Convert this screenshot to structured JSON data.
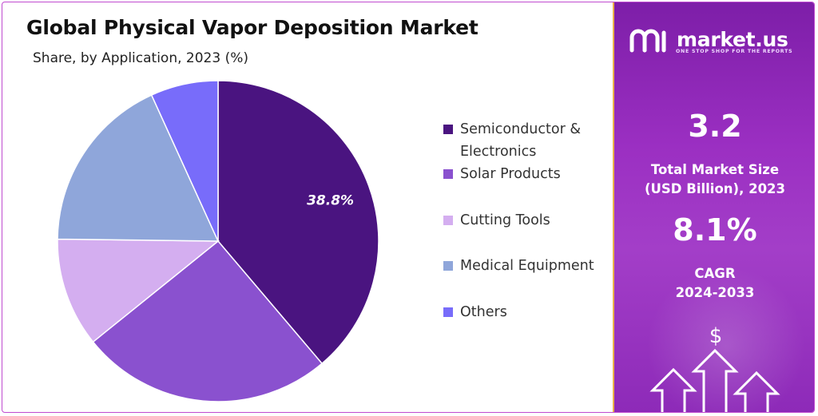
{
  "header": {
    "title": "Global Physical Vapor Deposition Market",
    "subtitle": "Share, by Application, 2023 (%)"
  },
  "chart_data": {
    "type": "pie",
    "categories": [
      "Semiconductor & Electronics",
      "Solar Products",
      "Cutting Tools",
      "Medical Equipment",
      "Others"
    ],
    "values": [
      38.8,
      25.4,
      11.0,
      18.0,
      6.8
    ],
    "data_labels": [
      "38.8%",
      "",
      "",
      "",
      ""
    ],
    "colors": [
      "#4a1480",
      "#8a51cf",
      "#d4aef0",
      "#8fa6da",
      "#786cfa"
    ],
    "legend_position": "right"
  },
  "legend": {
    "items": [
      {
        "label_lines": [
          "Semiconductor &",
          "Electronics"
        ],
        "color": "#4a1480"
      },
      {
        "label_lines": [
          "Solar Products"
        ],
        "color": "#8a51cf"
      },
      {
        "label_lines": [
          "Cutting Tools"
        ],
        "color": "#d4aef0"
      },
      {
        "label_lines": [
          "Medical Equipment"
        ],
        "color": "#8fa6da"
      },
      {
        "label_lines": [
          "Others"
        ],
        "color": "#786cfa"
      }
    ]
  },
  "sidebar": {
    "brand": "market.us",
    "tagline": "ONE STOP SHOP FOR THE REPORTS",
    "market_size_value": "3.2",
    "market_size_label_1": "Total Market Size",
    "market_size_label_2": "(USD Billion), 2023",
    "cagr_value": "8.1%",
    "cagr_label_1": "CAGR",
    "cagr_label_2": "2024-2033",
    "dollar_symbol": "$",
    "background_color": "#9b2fc2",
    "accent_border_color": "#e9b04a"
  }
}
